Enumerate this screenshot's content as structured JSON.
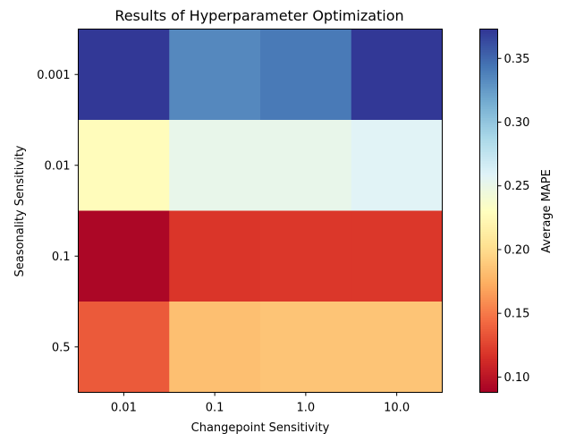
{
  "chart_data": {
    "type": "heatmap",
    "title": "Results of Hyperparameter Optimization",
    "xlabel": "Changepoint Sensitivity",
    "ylabel": "Seasonality Sensitivity",
    "x_categories": [
      "0.01",
      "0.1",
      "1.0",
      "10.0"
    ],
    "y_categories": [
      "0.001",
      "0.01",
      "0.1",
      "0.5"
    ],
    "values": [
      [
        0.372,
        0.335,
        0.342,
        0.372
      ],
      [
        0.228,
        0.252,
        0.252,
        0.258
      ],
      [
        0.092,
        0.119,
        0.12,
        0.12
      ],
      [
        0.136,
        0.183,
        0.186,
        0.186
      ]
    ],
    "colorbar": {
      "label": "Average MAPE",
      "colormap": "RdYlBu",
      "vmin": 0.088,
      "vmax": 0.373,
      "ticks": [
        "0.10",
        "0.15",
        "0.20",
        "0.25",
        "0.30",
        "0.35"
      ]
    }
  }
}
